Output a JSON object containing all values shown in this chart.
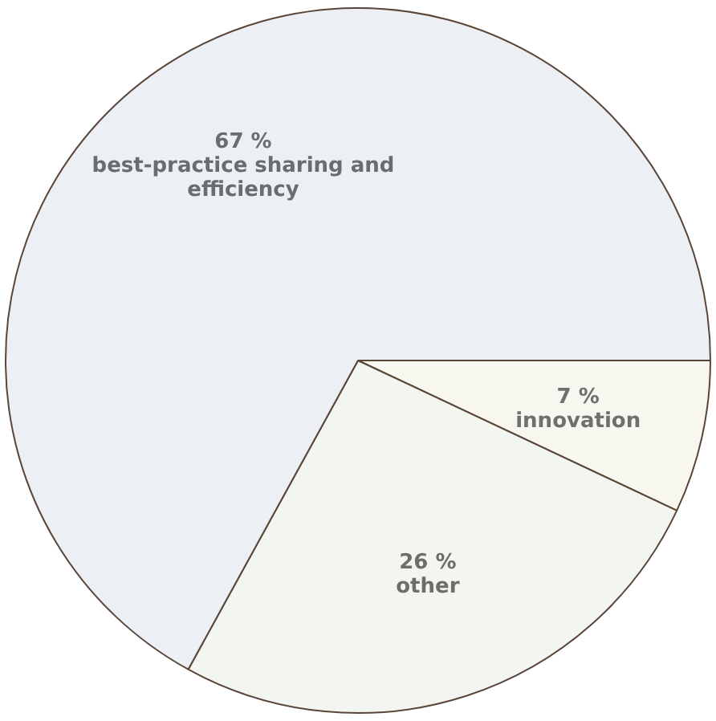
{
  "chart_data": {
    "type": "pie",
    "categories": [
      "innovation",
      "other",
      "best-practice sharing and efficiency"
    ],
    "values": [
      7,
      26,
      67
    ],
    "colors": [
      "#f8f7ef",
      "#f3f5f0",
      "#eceff3"
    ],
    "value_labels": [
      "7 %",
      "26 %",
      "67 %"
    ],
    "legend": false
  }
}
